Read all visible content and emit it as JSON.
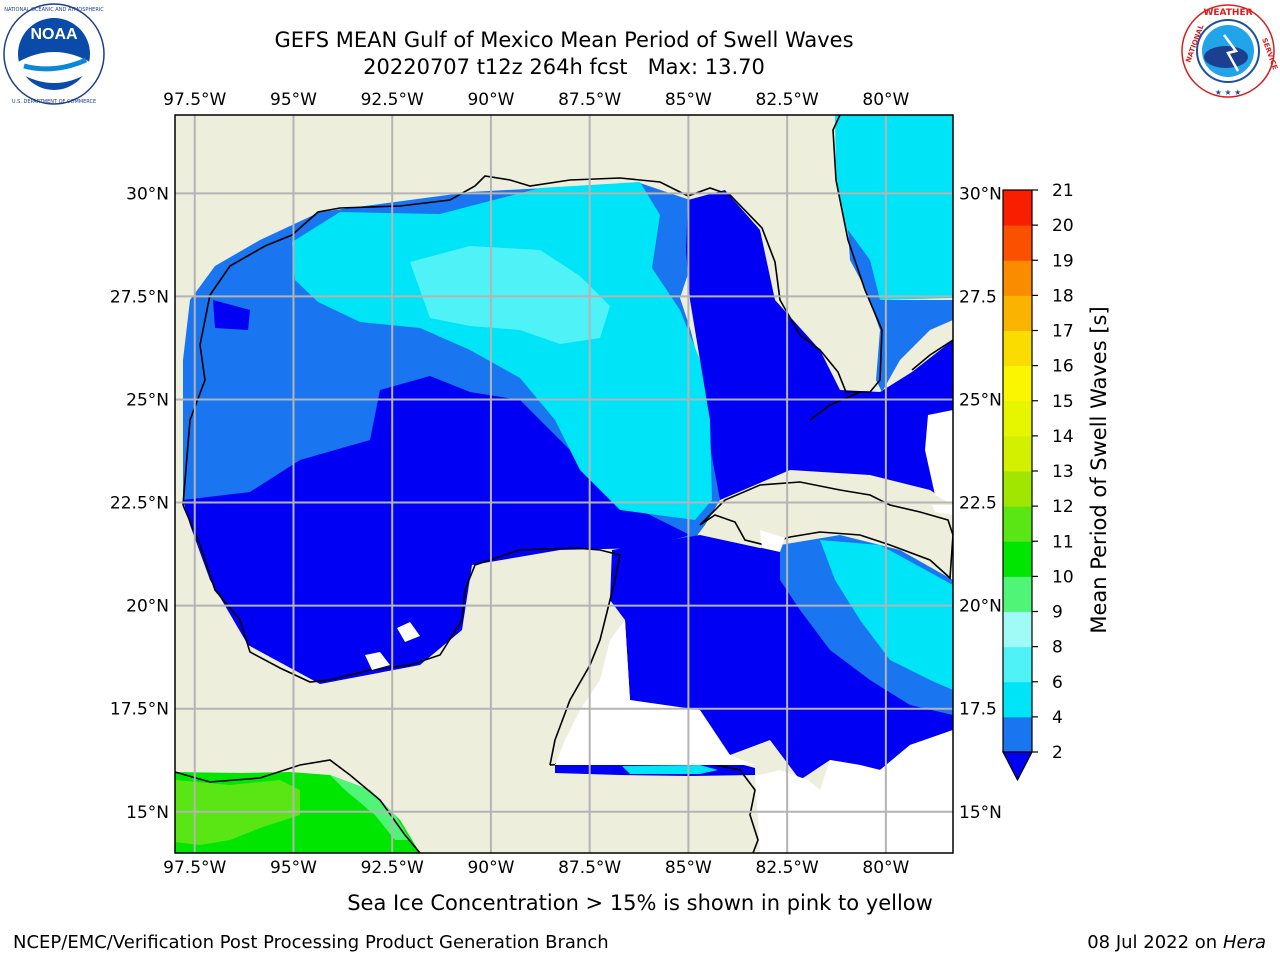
{
  "header": {
    "title": "GEFS MEAN Gulf of Mexico Mean Period of Swell Waves",
    "subtitle": "20220707 t12z 264h fcst   Max: 13.70"
  },
  "logos": {
    "left": {
      "name": "noaa-logo",
      "text": "NOAA",
      "ring_text": "NATIONAL OCEANIC AND ATMOSPHERIC ADMINISTRATION · U.S. DEPARTMENT OF COMMERCE"
    },
    "right": {
      "name": "nws-logo",
      "ring_text": "NATIONAL WEATHER SERVICE"
    }
  },
  "map": {
    "lon_labels": [
      "97.5°W",
      "95°W",
      "92.5°W",
      "90°W",
      "87.5°W",
      "85°W",
      "82.5°W",
      "80°W"
    ],
    "lat_labels": [
      "30°N",
      "27.5°N",
      "25°N",
      "22.5°N",
      "20°N",
      "17.5°N",
      "15°N"
    ],
    "lat_labels_right": [
      "30°N",
      "27.5",
      "25°N",
      "22.5",
      "20°N",
      "17.5",
      "15°N"
    ],
    "lon_range": [
      -98,
      -78.3
    ],
    "lat_range": [
      14,
      31.9
    ],
    "land_color": "#eeeedd",
    "grid_color": "#b4b4b4"
  },
  "colorbar": {
    "label": "Mean Period of Swell Waves [s]",
    "ticks": [
      "2",
      "4",
      "6",
      "8",
      "9",
      "10",
      "11",
      "12",
      "13",
      "14",
      "15",
      "16",
      "17",
      "18",
      "19",
      "20",
      "21"
    ],
    "colors": [
      "#1975f0",
      "#00e4f7",
      "#4ff3f7",
      "#a0faf5",
      "#50f578",
      "#00e600",
      "#5ae614",
      "#a0e600",
      "#d2f000",
      "#e6f500",
      "#faf500",
      "#fadc00",
      "#fab400",
      "#fa8c00",
      "#fa5000",
      "#fa1e00"
    ],
    "extend_color": "#0000f5"
  },
  "footer": {
    "note": "Sea Ice Concentration > 15% is shown in pink to yellow",
    "credit": "NCEP/EMC/Verification Post Processing Product Generation Branch",
    "date": "08 Jul 2022 on",
    "machine": "Hera"
  }
}
